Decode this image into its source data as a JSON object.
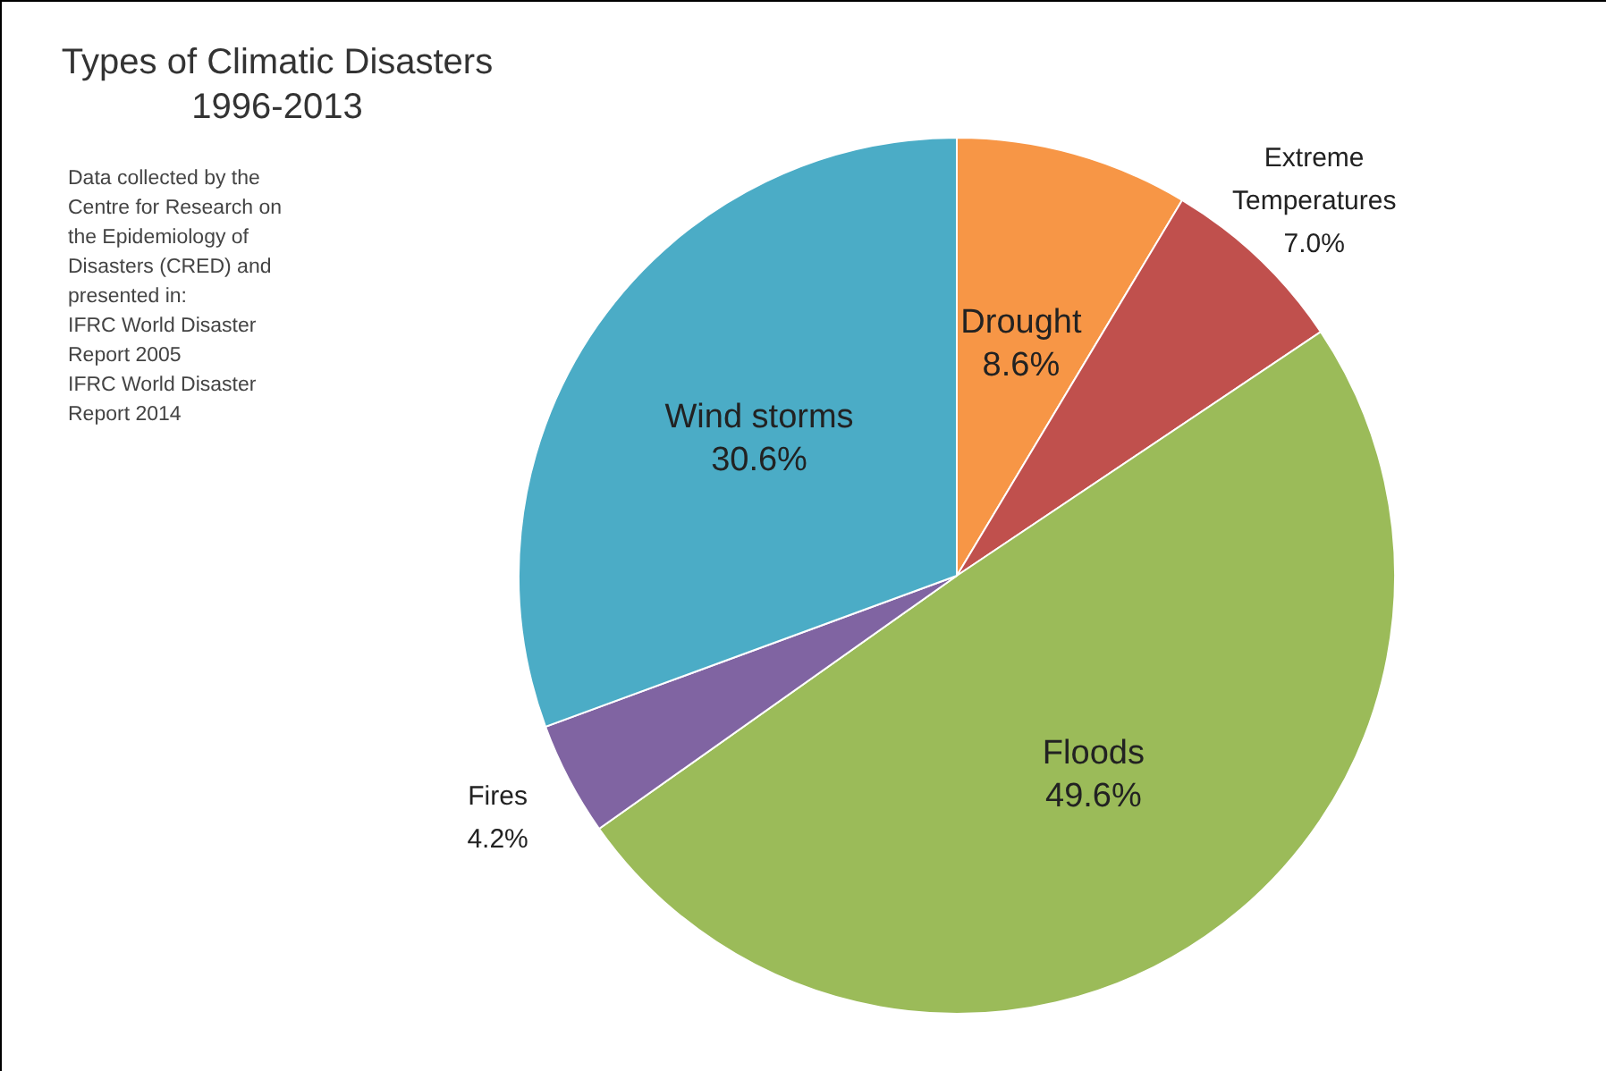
{
  "chart_data": {
    "type": "pie",
    "title": "Types of Climatic Disasters",
    "subtitle": "1996-2013",
    "categories": [
      "Drought",
      "Extreme Temperatures",
      "Floods",
      "Fires",
      "Wind storms"
    ],
    "values": [
      8.6,
      7.0,
      49.6,
      4.2,
      30.6
    ],
    "value_labels": [
      "8.6%",
      "7.0%",
      "49.6%",
      "4.2%",
      "30.6%"
    ],
    "colors": [
      "#f79646",
      "#c0504d",
      "#9bbb59",
      "#8064a2",
      "#4bacc6"
    ],
    "annotations": [
      "Data collected by the Centre for Research on the Epidemiology of Disasters (CRED) and presented in:",
      "IFRC World Disaster Report 2005",
      "IFRC World Disaster Report 2014"
    ]
  }
}
